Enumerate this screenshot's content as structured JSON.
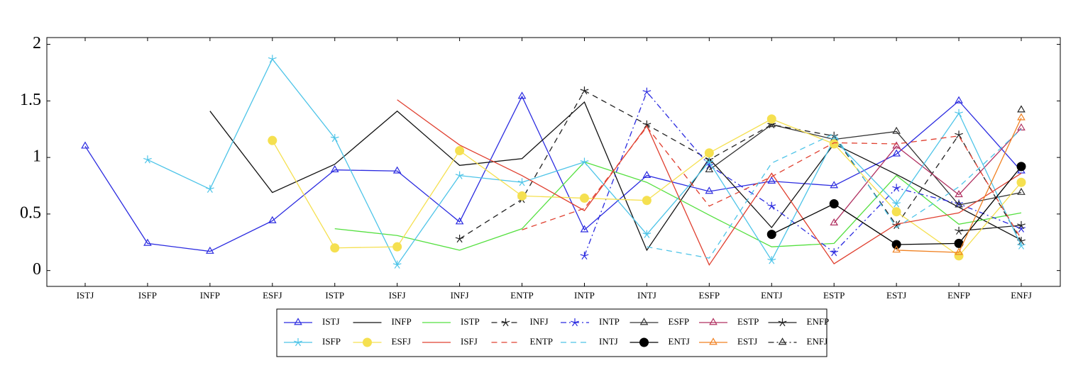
{
  "chart_data": {
    "type": "line",
    "categories": [
      "ISTJ",
      "ISFP",
      "INFP",
      "ESFJ",
      "ISTP",
      "ISFJ",
      "INFJ",
      "ENTP",
      "INTP",
      "INTJ",
      "ESFP",
      "ENTJ",
      "ESTP",
      "ESTJ",
      "ENFP",
      "ENFJ"
    ],
    "ylim": [
      -0.14,
      2.06
    ],
    "yticks": [
      0,
      0.5,
      1,
      1.5,
      2
    ],
    "series": [
      {
        "name": "ISTJ",
        "color": "#2b2be0",
        "marker": "triangle",
        "dash": "solid",
        "values": [
          1.1,
          0.24,
          0.17,
          0.44,
          0.89,
          0.88,
          0.43,
          1.54,
          0.36,
          0.84,
          0.7,
          0.79,
          0.75,
          1.03,
          1.5,
          0.88
        ]
      },
      {
        "name": "INFP",
        "color": "#111111",
        "marker": "none",
        "dash": "solid",
        "values": [
          null,
          null,
          1.41,
          0.69,
          0.94,
          1.41,
          0.93,
          0.99,
          1.49,
          0.18,
          0.99,
          0.38,
          1.12,
          0.85,
          0.56,
          0.27
        ]
      },
      {
        "name": "ISTP",
        "color": "#55e040",
        "marker": "none",
        "dash": "solid",
        "values": [
          null,
          null,
          null,
          null,
          0.37,
          0.31,
          0.18,
          0.37,
          0.96,
          0.78,
          0.49,
          0.21,
          0.24,
          0.84,
          0.41,
          0.51
        ]
      },
      {
        "name": "INFJ",
        "color": "#222222",
        "marker": "star",
        "dash": "dashed",
        "values": [
          null,
          null,
          null,
          null,
          null,
          null,
          0.28,
          0.63,
          1.59,
          1.29,
          0.98,
          1.29,
          1.19,
          0.4,
          1.2,
          0.26
        ]
      },
      {
        "name": "INTP",
        "color": "#2b2be0",
        "marker": "star",
        "dash": "dashdot",
        "values": [
          null,
          null,
          null,
          null,
          null,
          null,
          null,
          null,
          0.13,
          1.58,
          0.93,
          0.57,
          0.16,
          0.73,
          0.59,
          0.37
        ]
      },
      {
        "name": "ESFP",
        "color": "#333333",
        "marker": "triangle",
        "dash": "solid",
        "values": [
          null,
          null,
          null,
          null,
          null,
          null,
          null,
          null,
          null,
          null,
          0.89,
          1.29,
          1.16,
          1.23,
          0.58,
          0.69
        ]
      },
      {
        "name": "ESTP",
        "color": "#b03060",
        "marker": "triangle",
        "dash": "solid",
        "values": [
          null,
          null,
          null,
          null,
          null,
          null,
          null,
          null,
          null,
          null,
          null,
          null,
          0.42,
          1.1,
          0.67,
          1.26
        ]
      },
      {
        "name": "ENFP",
        "color": "#222222",
        "marker": "star",
        "dash": "solid",
        "values": [
          null,
          null,
          null,
          null,
          null,
          null,
          null,
          null,
          null,
          null,
          null,
          null,
          null,
          null,
          0.35,
          0.4
        ]
      },
      {
        "name": "ISFP",
        "color": "#4dc4e8",
        "marker": "star",
        "dash": "solid",
        "values": [
          null,
          0.98,
          0.72,
          1.87,
          1.17,
          0.05,
          0.84,
          0.78,
          0.96,
          0.32,
          0.96,
          0.09,
          1.16,
          0.59,
          1.39,
          0.22
        ]
      },
      {
        "name": "ESFJ",
        "color": "#f5e050",
        "marker": "circle",
        "dash": "solid",
        "values": [
          null,
          null,
          null,
          1.15,
          0.2,
          0.21,
          1.06,
          0.66,
          0.64,
          0.62,
          1.04,
          1.34,
          1.12,
          0.52,
          0.13,
          0.78
        ]
      },
      {
        "name": "ISFJ",
        "color": "#e04030",
        "marker": "none",
        "dash": "solid",
        "values": [
          null,
          null,
          null,
          null,
          null,
          1.51,
          1.11,
          0.84,
          0.53,
          1.28,
          0.05,
          0.86,
          0.06,
          0.41,
          0.51,
          0.86
        ]
      },
      {
        "name": "ENTP",
        "color": "#e04030",
        "marker": "none",
        "dash": "dashed",
        "values": [
          null,
          null,
          null,
          null,
          null,
          null,
          null,
          0.36,
          0.55,
          1.27,
          0.57,
          0.83,
          1.13,
          1.12,
          1.19,
          0.28
        ]
      },
      {
        "name": "INTJ",
        "color": "#4dc4e8",
        "marker": "none",
        "dash": "dashed",
        "values": [
          null,
          null,
          null,
          null,
          null,
          null,
          null,
          null,
          null,
          0.21,
          0.11,
          0.95,
          1.21,
          0.38,
          0.74,
          1.25
        ]
      },
      {
        "name": "ENTJ",
        "color": "#000000",
        "marker": "circle",
        "dash": "solid",
        "values": [
          null,
          null,
          null,
          null,
          null,
          null,
          null,
          null,
          null,
          null,
          null,
          0.32,
          0.59,
          0.23,
          0.24,
          0.92
        ]
      },
      {
        "name": "ESTJ",
        "color": "#f08020",
        "marker": "triangle",
        "dash": "solid",
        "values": [
          null,
          null,
          null,
          null,
          null,
          null,
          null,
          null,
          null,
          null,
          null,
          null,
          null,
          0.18,
          0.16,
          1.35
        ]
      },
      {
        "name": "ENFJ",
        "color": "#222222",
        "marker": "triangle",
        "dash": "dashdot",
        "values": [
          null,
          null,
          null,
          null,
          null,
          null,
          null,
          null,
          null,
          null,
          null,
          null,
          null,
          null,
          null,
          1.42
        ]
      }
    ]
  }
}
